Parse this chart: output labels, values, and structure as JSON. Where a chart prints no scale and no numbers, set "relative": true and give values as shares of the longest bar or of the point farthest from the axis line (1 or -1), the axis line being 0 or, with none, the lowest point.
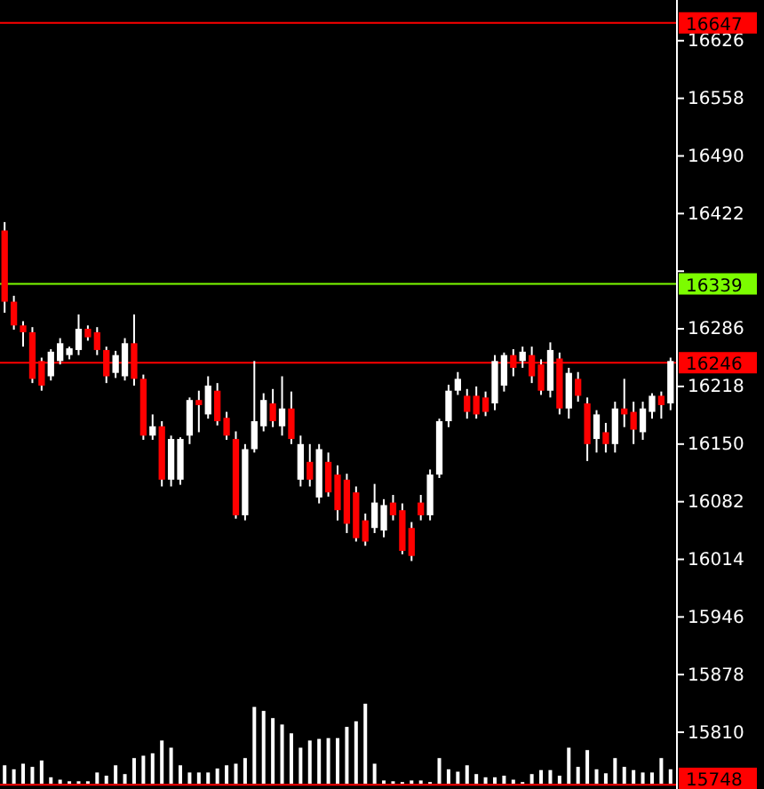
{
  "chart_data": [
    {
      "type": "candlestick",
      "categories": [
        null,
        null,
        null,
        null,
        null,
        null,
        null,
        null,
        null,
        null,
        null,
        null,
        null,
        null,
        null,
        null,
        null,
        null,
        null,
        null,
        null,
        null,
        null,
        null,
        null,
        null,
        null,
        null,
        null,
        null,
        null,
        null,
        null,
        null,
        null,
        null,
        null,
        null,
        null,
        null,
        null,
        null,
        null,
        null,
        null,
        null,
        null,
        null,
        null,
        null,
        null,
        null,
        null,
        null,
        null,
        null,
        null,
        null,
        null,
        null,
        null,
        null,
        null,
        null,
        null,
        null,
        null,
        null,
        null,
        null,
        null,
        null,
        null
      ],
      "ohlc": [
        [
          16402,
          16412,
          16305,
          16318
        ],
        [
          16318,
          16325,
          16285,
          16290
        ],
        [
          16290,
          16295,
          16265,
          16282
        ],
        [
          16282,
          16288,
          16222,
          16227
        ],
        [
          16248,
          16252,
          16213,
          16219
        ],
        [
          16230,
          16262,
          16225,
          16259
        ],
        [
          16248,
          16275,
          16244,
          16269
        ],
        [
          16255,
          16265,
          16250,
          16263
        ],
        [
          16261,
          16303,
          16255,
          16286
        ],
        [
          16286,
          16290,
          16272,
          16276
        ],
        [
          16282,
          16288,
          16255,
          16261
        ],
        [
          16261,
          16265,
          16222,
          16230
        ],
        [
          16234,
          16260,
          16228,
          16255
        ],
        [
          16230,
          16275,
          16225,
          16269
        ],
        [
          16269,
          16303,
          16219,
          16227
        ],
        [
          16227,
          16232,
          16155,
          16160
        ],
        [
          16160,
          16185,
          16155,
          16171
        ],
        [
          16171,
          16177,
          16100,
          16108
        ],
        [
          16108,
          16160,
          16100,
          16156
        ],
        [
          16108,
          16158,
          16102,
          16156
        ],
        [
          16160,
          16205,
          16150,
          16202
        ],
        [
          16202,
          16213,
          16164,
          16196
        ],
        [
          16185,
          16230,
          16180,
          16219
        ],
        [
          16213,
          16222,
          16172,
          16177
        ],
        [
          16181,
          16188,
          16155,
          16160
        ],
        [
          16156,
          16165,
          16062,
          16066
        ],
        [
          16066,
          16150,
          16060,
          16144
        ],
        [
          16144,
          16248,
          16140,
          16177
        ],
        [
          16171,
          16210,
          16165,
          16202
        ],
        [
          16198,
          16215,
          16170,
          16177
        ],
        [
          16171,
          16230,
          16160,
          16192
        ],
        [
          16192,
          16212,
          16150,
          16156
        ],
        [
          16108,
          16160,
          16100,
          16150
        ],
        [
          16129,
          16150,
          16100,
          16108
        ],
        [
          16087,
          16150,
          16080,
          16144
        ],
        [
          16129,
          16140,
          16088,
          16093
        ],
        [
          16114,
          16125,
          16060,
          16072
        ],
        [
          16108,
          16115,
          16045,
          16056
        ],
        [
          16093,
          16100,
          16035,
          16039
        ],
        [
          16060,
          16068,
          16030,
          16035
        ],
        [
          16051,
          16103,
          16045,
          16081
        ],
        [
          16048,
          16085,
          16040,
          16078
        ],
        [
          16081,
          16090,
          16060,
          16066
        ],
        [
          16072,
          16080,
          16020,
          16024
        ],
        [
          16051,
          16058,
          16012,
          16018
        ],
        [
          16081,
          16090,
          16060,
          16066
        ],
        [
          16066,
          16120,
          16060,
          16114
        ],
        [
          16114,
          16180,
          16110,
          16177
        ],
        [
          16177,
          16220,
          16170,
          16213
        ],
        [
          16213,
          16235,
          16208,
          16227
        ],
        [
          16207,
          16215,
          16180,
          16188
        ],
        [
          16207,
          16218,
          16180,
          16185
        ],
        [
          16205,
          16212,
          16183,
          16188
        ],
        [
          16198,
          16255,
          16190,
          16248
        ],
        [
          16219,
          16258,
          16212,
          16255
        ],
        [
          16255,
          16262,
          16230,
          16240
        ],
        [
          16248,
          16265,
          16240,
          16259
        ],
        [
          16255,
          16265,
          16222,
          16230
        ],
        [
          16244,
          16250,
          16208,
          16213
        ],
        [
          16213,
          16270,
          16205,
          16261
        ],
        [
          16251,
          16258,
          16185,
          16192
        ],
        [
          16192,
          16240,
          16180,
          16234
        ],
        [
          16227,
          16235,
          16200,
          16207
        ],
        [
          16198,
          16205,
          16130,
          16150
        ],
        [
          16156,
          16190,
          16140,
          16185
        ],
        [
          16164,
          16175,
          16140,
          16150
        ],
        [
          16150,
          16200,
          16140,
          16192
        ],
        [
          16192,
          16227,
          16170,
          16185
        ],
        [
          16188,
          16200,
          16150,
          16167
        ],
        [
          16164,
          16200,
          16155,
          16192
        ],
        [
          16188,
          16210,
          16180,
          16207
        ],
        [
          16207,
          16212,
          16180,
          16196
        ],
        [
          16198,
          16252,
          16190,
          16248
        ]
      ],
      "ylim": [
        15743,
        16674
      ],
      "yticks": [
        15810,
        15878,
        15946,
        16014,
        16082,
        16150,
        16218,
        16286,
        {
          "value": 16354,
          "label": null
        },
        16422,
        16490,
        16558,
        16626
      ],
      "ref_lines": [
        {
          "axis": "y",
          "value": 16647,
          "label": "16647",
          "color": "#ff0000"
        },
        {
          "axis": "y",
          "value": 16339,
          "label": "16339",
          "color": "#7cfc00"
        },
        {
          "axis": "y",
          "value": 16246,
          "label": "16246",
          "color": "#ff0000"
        },
        {
          "axis": "y",
          "value": 15748,
          "label": "15748",
          "color": "#ff0000"
        }
      ]
    },
    {
      "type": "bar",
      "relative": true,
      "color": "#ffffff",
      "categories": [
        null,
        null,
        null,
        null,
        null,
        null,
        null,
        null,
        null,
        null,
        null,
        null,
        null,
        null,
        null,
        null,
        null,
        null,
        null,
        null,
        null,
        null,
        null,
        null,
        null,
        null,
        null,
        null,
        null,
        null,
        null,
        null,
        null,
        null,
        null,
        null,
        null,
        null,
        null,
        null,
        null,
        null,
        null,
        null,
        null,
        null,
        null,
        null,
        null,
        null,
        null,
        null,
        null,
        null,
        null,
        null,
        null,
        null,
        null,
        null,
        null,
        null,
        null,
        null,
        null,
        null,
        null,
        null,
        null,
        null,
        null,
        null,
        null
      ],
      "values": [
        0.23,
        0.18,
        0.25,
        0.21,
        0.29,
        0.08,
        0.05,
        0.03,
        0.03,
        0.03,
        0.14,
        0.1,
        0.23,
        0.12,
        0.32,
        0.35,
        0.38,
        0.54,
        0.45,
        0.23,
        0.14,
        0.14,
        0.14,
        0.19,
        0.23,
        0.25,
        0.32,
        0.96,
        0.91,
        0.82,
        0.74,
        0.63,
        0.45,
        0.54,
        0.56,
        0.57,
        0.57,
        0.71,
        0.78,
        1,
        0.25,
        0.04,
        0.03,
        0.02,
        0.04,
        0.04,
        0.02,
        0.32,
        0.18,
        0.15,
        0.23,
        0.12,
        0.08,
        0.08,
        0.1,
        0.05,
        0.02,
        0.12,
        0.17,
        0.17,
        0.1,
        0.45,
        0.21,
        0.42,
        0.18,
        0.13,
        0.32,
        0.21,
        0.17,
        0.14,
        0.14,
        0.32,
        0.18
      ]
    }
  ]
}
